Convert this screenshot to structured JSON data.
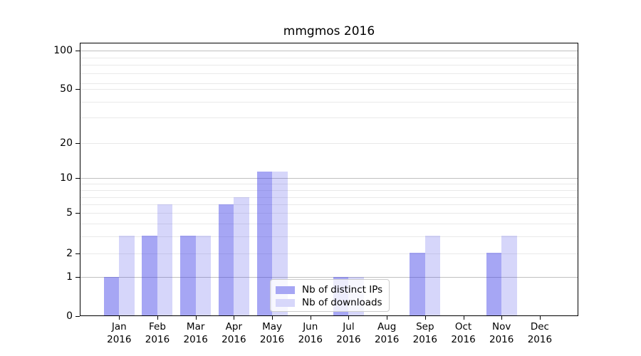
{
  "chart_data": {
    "type": "bar",
    "title": "mmgmos 2016",
    "categories": [
      "Jan",
      "Feb",
      "Mar",
      "Apr",
      "May",
      "Jun",
      "Jul",
      "Aug",
      "Sep",
      "Oct",
      "Nov",
      "Dec"
    ],
    "x_year": "2016",
    "series": [
      {
        "name": "Nb of distinct IPs",
        "values": [
          1,
          3,
          3,
          6,
          11,
          0,
          1,
          0,
          2,
          0,
          2,
          0
        ],
        "bar_color": "rgba(70,70,232,0.48)",
        "swatch_color": "#a6a6f4"
      },
      {
        "name": "Nb of downloads",
        "values": [
          3,
          6,
          3,
          7,
          11,
          0,
          1,
          0,
          3,
          0,
          3,
          0
        ],
        "bar_color": "rgba(70,70,232,0.22)",
        "swatch_color": "#d7d7fa"
      }
    ],
    "y_axis": {
      "scale": "log-like (compressed near zero, zero shown)",
      "ylim": [
        0,
        115
      ],
      "tick_values": [
        100,
        50,
        20,
        10,
        5,
        2,
        1,
        0
      ],
      "tick_labels": [
        "100",
        "50",
        "20",
        "10",
        "5",
        "2",
        "1",
        "0"
      ],
      "minor_grid_values": [
        2,
        3,
        4,
        5,
        6,
        7,
        8,
        9,
        20,
        30,
        40,
        50,
        60,
        70,
        80,
        90
      ],
      "major_grid_values": [
        1,
        10,
        100
      ]
    },
    "grid": true,
    "legend_position": "lower center"
  },
  "colors": {
    "major_grid": "#bfbfbf",
    "minor_grid": "#e9e9e9",
    "spine": "#000000",
    "text": "#000000",
    "background": "#ffffff"
  }
}
